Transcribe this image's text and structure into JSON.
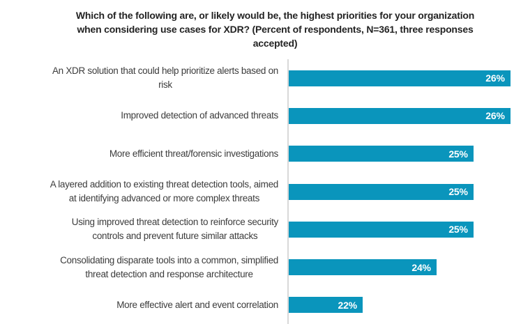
{
  "figure": {
    "title_lines": [
      "Which of the following are, or likely would be, the highest priorities for your organization",
      "when considering use cases for XDR? (Percent of respondents, N=361, three responses",
      "accepted)"
    ]
  },
  "colors": {
    "bar": "#0a95bc",
    "axis_line": "#d8d8d8",
    "title_text": "#232323",
    "label_text": "#3c3c3c",
    "value_text": "#ffffff",
    "background": "#ffffff"
  },
  "chart_data": {
    "type": "bar",
    "orientation": "horizontal",
    "title": "Which of the following are, or likely would be, the highest priorities for your organization when considering use cases for XDR? (Percent of respondents, N=361, three responses accepted)",
    "categories": [
      "An XDR solution that could help prioritize alerts based on risk",
      "Improved detection of advanced threats",
      "More efficient threat/forensic investigations",
      "A layered addition to existing threat detection tools, aimed at identifying advanced or more complex threats",
      "Using improved threat detection to reinforce security controls and prevent future similar attacks",
      "Consolidating disparate tools into a common, simplified threat detection and response architecture",
      "More effective alert and event correlation"
    ],
    "category_lines": [
      [
        "An XDR solution that could help prioritize alerts based on",
        "risk"
      ],
      [
        "Improved detection of advanced threats"
      ],
      [
        "More efficient threat/forensic investigations"
      ],
      [
        "A layered addition to existing threat detection tools, aimed",
        "at identifying advanced or more complex threats"
      ],
      [
        "Using improved threat detection to reinforce security",
        "controls and prevent future similar attacks"
      ],
      [
        "Consolidating disparate tools into a common, simplified",
        "threat detection and response architecture"
      ],
      [
        "More effective alert and event correlation"
      ]
    ],
    "values": [
      26,
      26,
      25,
      25,
      25,
      24,
      22
    ],
    "value_labels": [
      "26%",
      "26%",
      "25%",
      "25%",
      "25%",
      "24%",
      "22%"
    ],
    "unit": "percent of respondents",
    "xlim": [
      20,
      26.1
    ],
    "grid": false,
    "legend_position": "none",
    "value_label_position": "inside-end",
    "bar_color": "#0a95bc"
  }
}
